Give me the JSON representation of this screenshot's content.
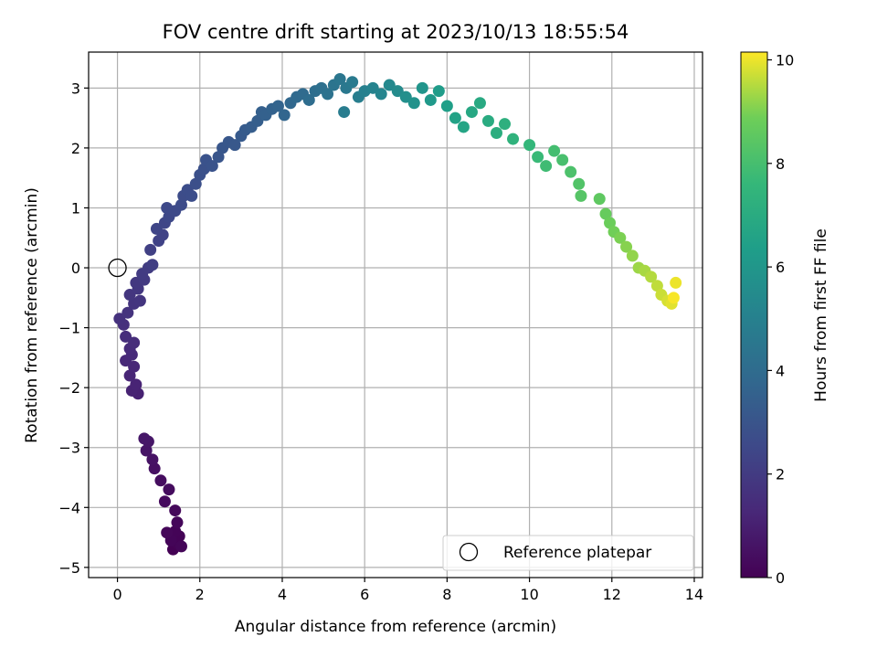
{
  "chart_data": {
    "type": "scatter",
    "title": "FOV centre drift starting at 2023/10/13 18:55:54",
    "xlabel": "Angular distance from reference (arcmin)",
    "ylabel": "Rotation from reference (arcmin)",
    "xlim": [
      -0.7,
      14.2
    ],
    "ylim": [
      -5.17,
      3.6
    ],
    "xticks": [
      0,
      2,
      4,
      6,
      8,
      10,
      12,
      14
    ],
    "yticks": [
      -5,
      -4,
      -3,
      -2,
      -1,
      0,
      1,
      2,
      3
    ],
    "grid": true,
    "colorbar": {
      "label": "Hours from first FF file",
      "range": [
        0,
        10.15
      ],
      "ticks": [
        0,
        2,
        4,
        6,
        8,
        10
      ],
      "colormap": "viridis"
    },
    "legend": {
      "position": "bottom-right",
      "entries": [
        {
          "label": "Reference platepar",
          "marker": "open-circle",
          "x": 0,
          "y": 0
        }
      ]
    },
    "series": [
      {
        "marker": "filled-circle",
        "columns": [
          "x",
          "y",
          "hours"
        ],
        "points": [
          [
            1.35,
            -4.7,
            0.0
          ],
          [
            1.45,
            -4.6,
            0.05
          ],
          [
            1.5,
            -4.48,
            0.08
          ],
          [
            1.4,
            -4.4,
            0.1
          ],
          [
            1.3,
            -4.55,
            0.13
          ],
          [
            1.55,
            -4.65,
            0.15
          ],
          [
            1.2,
            -4.42,
            0.18
          ],
          [
            1.45,
            -4.25,
            0.2
          ],
          [
            1.4,
            -4.05,
            0.25
          ],
          [
            1.15,
            -3.9,
            0.3
          ],
          [
            1.25,
            -3.7,
            0.35
          ],
          [
            1.05,
            -3.55,
            0.4
          ],
          [
            0.9,
            -3.35,
            0.48
          ],
          [
            0.85,
            -3.2,
            0.55
          ],
          [
            0.7,
            -3.05,
            0.62
          ],
          [
            0.75,
            -2.9,
            0.68
          ],
          [
            0.65,
            -2.85,
            0.72
          ],
          [
            0.5,
            -2.1,
            1.05
          ],
          [
            0.35,
            -2.05,
            1.1
          ],
          [
            0.45,
            -1.95,
            1.15
          ],
          [
            0.3,
            -1.8,
            1.2
          ],
          [
            0.4,
            -1.65,
            1.25
          ],
          [
            0.2,
            -1.55,
            1.3
          ],
          [
            0.35,
            -1.45,
            1.35
          ],
          [
            0.3,
            -1.35,
            1.4
          ],
          [
            0.4,
            -1.25,
            1.45
          ],
          [
            0.2,
            -1.15,
            1.5
          ],
          [
            0.15,
            -0.95,
            1.58
          ],
          [
            0.05,
            -0.85,
            1.62
          ],
          [
            0.25,
            -0.75,
            1.68
          ],
          [
            0.4,
            -0.6,
            1.72
          ],
          [
            0.55,
            -0.55,
            1.76
          ],
          [
            0.3,
            -0.45,
            1.8
          ],
          [
            0.5,
            -0.35,
            1.85
          ],
          [
            0.45,
            -0.25,
            1.9
          ],
          [
            0.65,
            -0.2,
            1.95
          ],
          [
            0.6,
            -0.1,
            2.0
          ],
          [
            0.75,
            0.0,
            2.05
          ],
          [
            0.85,
            0.05,
            2.1
          ],
          [
            0.8,
            0.3,
            2.2
          ],
          [
            1.0,
            0.45,
            2.28
          ],
          [
            1.1,
            0.55,
            2.32
          ],
          [
            0.95,
            0.65,
            2.38
          ],
          [
            1.15,
            0.75,
            2.42
          ],
          [
            1.25,
            0.85,
            2.48
          ],
          [
            1.2,
            1.0,
            2.52
          ],
          [
            1.4,
            0.95,
            2.56
          ],
          [
            1.55,
            1.05,
            2.6
          ],
          [
            1.6,
            1.2,
            2.65
          ],
          [
            1.7,
            1.3,
            2.7
          ],
          [
            1.8,
            1.2,
            2.72
          ],
          [
            1.9,
            1.4,
            2.78
          ],
          [
            2.0,
            1.55,
            2.82
          ],
          [
            2.1,
            1.65,
            2.86
          ],
          [
            2.15,
            1.8,
            2.92
          ],
          [
            2.3,
            1.7,
            2.96
          ],
          [
            2.45,
            1.85,
            3.02
          ],
          [
            2.55,
            2.0,
            3.08
          ],
          [
            2.7,
            2.1,
            3.12
          ],
          [
            2.85,
            2.05,
            3.16
          ],
          [
            3.0,
            2.2,
            3.22
          ],
          [
            3.1,
            2.3,
            3.28
          ],
          [
            3.25,
            2.35,
            3.34
          ],
          [
            3.4,
            2.45,
            3.4
          ],
          [
            3.5,
            2.6,
            3.46
          ],
          [
            3.6,
            2.55,
            3.52
          ],
          [
            3.75,
            2.65,
            3.58
          ],
          [
            3.9,
            2.7,
            3.64
          ],
          [
            4.05,
            2.55,
            3.72
          ],
          [
            4.2,
            2.75,
            3.8
          ],
          [
            4.35,
            2.85,
            3.88
          ],
          [
            4.5,
            2.9,
            3.96
          ],
          [
            4.65,
            2.8,
            4.04
          ],
          [
            4.8,
            2.95,
            4.12
          ],
          [
            4.95,
            3.0,
            4.2
          ],
          [
            5.1,
            2.9,
            4.3
          ],
          [
            5.25,
            3.05,
            4.4
          ],
          [
            5.4,
            3.15,
            4.5
          ],
          [
            5.55,
            3.0,
            4.6
          ],
          [
            5.7,
            3.1,
            4.7
          ],
          [
            5.5,
            2.6,
            4.8
          ],
          [
            5.85,
            2.85,
            4.9
          ],
          [
            6.0,
            2.95,
            5.0
          ],
          [
            6.2,
            3.0,
            5.1
          ],
          [
            6.4,
            2.9,
            5.2
          ],
          [
            6.6,
            3.05,
            5.35
          ],
          [
            6.8,
            2.95,
            5.5
          ],
          [
            7.0,
            2.85,
            5.65
          ],
          [
            7.2,
            2.75,
            5.8
          ],
          [
            7.4,
            3.0,
            5.95
          ],
          [
            7.6,
            2.8,
            6.1
          ],
          [
            7.8,
            2.95,
            6.25
          ],
          [
            8.0,
            2.7,
            6.4
          ],
          [
            8.2,
            2.5,
            6.55
          ],
          [
            8.4,
            2.35,
            6.7
          ],
          [
            8.6,
            2.6,
            6.8
          ],
          [
            8.8,
            2.75,
            6.9
          ],
          [
            9.0,
            2.45,
            7.0
          ],
          [
            9.2,
            2.25,
            7.1
          ],
          [
            9.4,
            2.4,
            7.2
          ],
          [
            9.6,
            2.15,
            7.35
          ],
          [
            10.0,
            2.05,
            7.55
          ],
          [
            10.2,
            1.85,
            7.7
          ],
          [
            10.4,
            1.7,
            7.85
          ],
          [
            10.6,
            1.95,
            7.95
          ],
          [
            10.8,
            1.8,
            8.05
          ],
          [
            11.0,
            1.6,
            8.15
          ],
          [
            11.2,
            1.4,
            8.25
          ],
          [
            11.25,
            1.2,
            8.35
          ],
          [
            11.7,
            1.15,
            8.55
          ],
          [
            11.85,
            0.9,
            8.7
          ],
          [
            11.95,
            0.75,
            8.8
          ],
          [
            12.05,
            0.6,
            8.9
          ],
          [
            12.2,
            0.5,
            9.0
          ],
          [
            12.35,
            0.35,
            9.1
          ],
          [
            12.5,
            0.2,
            9.2
          ],
          [
            12.65,
            0.0,
            9.3
          ],
          [
            12.8,
            -0.05,
            9.4
          ],
          [
            12.95,
            -0.15,
            9.5
          ],
          [
            13.1,
            -0.3,
            9.6
          ],
          [
            13.2,
            -0.45,
            9.7
          ],
          [
            13.35,
            -0.55,
            9.8
          ],
          [
            13.45,
            -0.6,
            9.9
          ],
          [
            13.55,
            -0.25,
            10.0
          ],
          [
            13.5,
            -0.5,
            10.1
          ]
        ]
      }
    ]
  }
}
